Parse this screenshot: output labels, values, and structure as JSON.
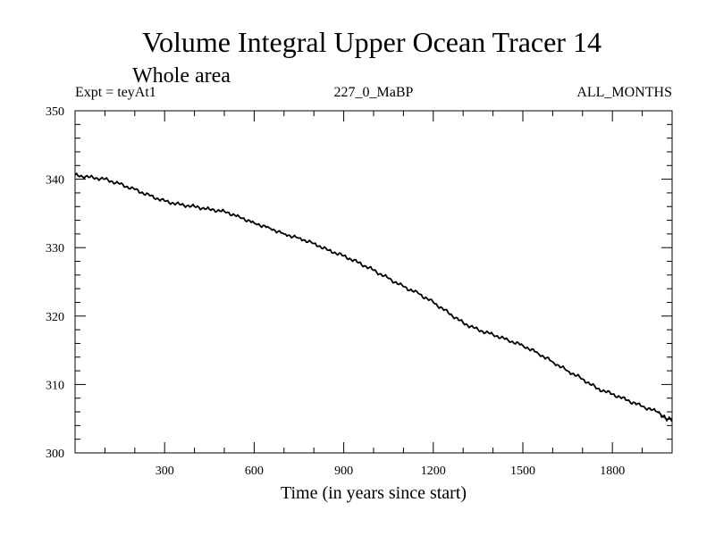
{
  "chart_data": {
    "type": "line",
    "title": "Volume Integral Upper Ocean Tracer 14",
    "subtitle": "Whole area",
    "annotations": {
      "left": "Expt = teyAt1",
      "center": "227_0_MaBP",
      "right": "ALL_MONTHS"
    },
    "xlabel": "Time (in years since start)",
    "ylabel": "",
    "xlim": [
      0,
      2000
    ],
    "ylim": [
      300,
      350
    ],
    "xticks": [
      300,
      600,
      900,
      1200,
      1500,
      1800
    ],
    "yticks": [
      300,
      310,
      320,
      330,
      340,
      350
    ],
    "x_minor_step": 100,
    "y_minor_step": 2,
    "grid": false,
    "color": "#000000",
    "series": [
      {
        "name": "Volume integral",
        "x": [
          0,
          50,
          100,
          150,
          200,
          250,
          300,
          350,
          400,
          450,
          500,
          550,
          600,
          650,
          700,
          750,
          800,
          850,
          900,
          950,
          1000,
          1050,
          1100,
          1150,
          1200,
          1250,
          1300,
          1350,
          1400,
          1450,
          1500,
          1550,
          1600,
          1650,
          1700,
          1750,
          1800,
          1850,
          1900,
          1950,
          1980,
          2000
        ],
        "y": [
          340.6,
          340.3,
          340.0,
          339.3,
          338.5,
          337.6,
          336.8,
          336.3,
          336.0,
          335.6,
          335.3,
          334.5,
          333.6,
          332.9,
          332.0,
          331.4,
          330.6,
          329.6,
          328.8,
          327.8,
          326.7,
          325.5,
          324.3,
          323.3,
          322.0,
          320.5,
          319.0,
          318.0,
          317.3,
          316.5,
          315.7,
          314.6,
          313.3,
          312.0,
          310.8,
          309.4,
          308.6,
          307.7,
          306.8,
          306.0,
          305.0,
          304.9
        ]
      }
    ]
  }
}
